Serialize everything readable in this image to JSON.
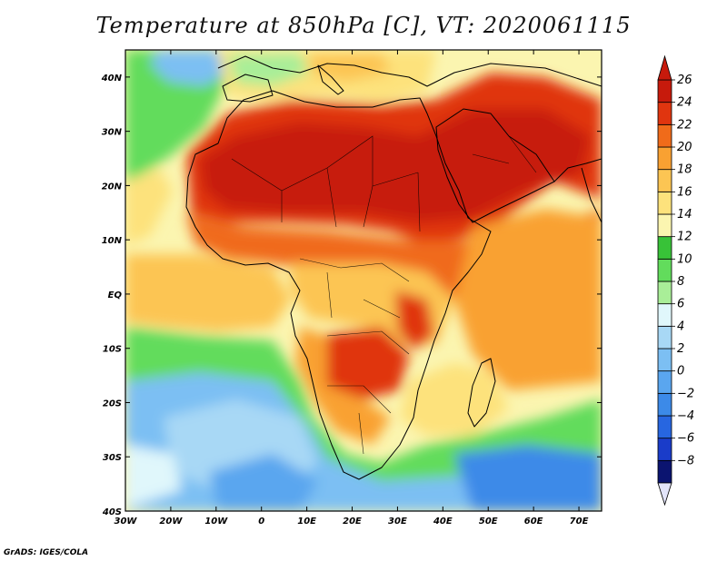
{
  "title": "Temperature at 850hPa [C], VT: 2020061115",
  "credit": "GrADS: IGES/COLA",
  "map": {
    "lon_range": [
      -30,
      75
    ],
    "lat_range": [
      -40,
      45
    ],
    "lon_ticks": [
      "30W",
      "20W",
      "10W",
      "0",
      "10E",
      "20E",
      "30E",
      "40E",
      "50E",
      "60E",
      "70E"
    ],
    "lat_ticks": [
      "40S",
      "30S",
      "20S",
      "10S",
      "EQ",
      "10N",
      "20N",
      "30N",
      "40N"
    ]
  },
  "colorbar": {
    "levels": [
      "-8",
      "-6",
      "-4",
      "-2",
      "0",
      "2",
      "4",
      "6",
      "8",
      "10",
      "12",
      "14",
      "16",
      "18",
      "20",
      "22",
      "24",
      "26"
    ],
    "colors": [
      "#0b1470",
      "#1a3cc9",
      "#2766e0",
      "#3c8ae8",
      "#5aa6ef",
      "#7cbff3",
      "#a8d8f5",
      "#e0f7fb",
      "#a9ee98",
      "#62dc5c",
      "#38c238",
      "#fbf5b0",
      "#fde27c",
      "#fcc553",
      "#f9a132",
      "#f06b1a",
      "#e0350f",
      "#c71a0c"
    ],
    "under_color": "#e2e4fa",
    "over_color": "#c71a0c"
  }
}
